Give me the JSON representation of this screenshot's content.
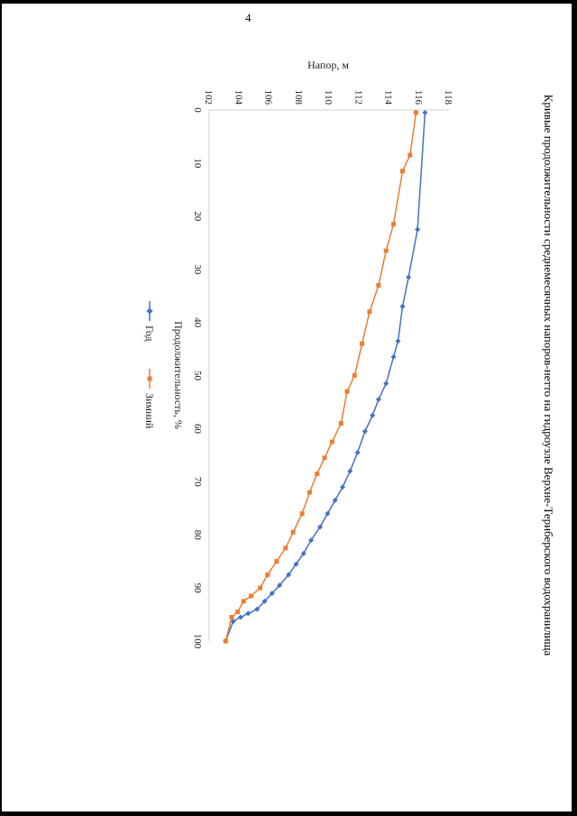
{
  "page": {
    "number": "4"
  },
  "chart_data": {
    "type": "line",
    "title": "Кривые продолжительности среднемесячных напоров-нетто на гидроузле Верхне-Териберского водохранилища",
    "xlabel": "Продолжительность, %",
    "ylabel": "Напор, м",
    "xlim": [
      0,
      100
    ],
    "ylim": [
      102,
      118
    ],
    "xticks": [
      "0",
      "10",
      "20",
      "30",
      "40",
      "50",
      "60",
      "70",
      "80",
      "90",
      "100"
    ],
    "yticks": [
      "102",
      "104",
      "106",
      "108",
      "110",
      "112",
      "114",
      "116",
      "118"
    ],
    "legend_position": "bottom",
    "series": [
      {
        "name": "Год",
        "color": "#4472C4",
        "marker": "diamond",
        "points": [
          [
            0.5,
            116.4
          ],
          [
            22.5,
            115.9
          ],
          [
            31.5,
            115.3
          ],
          [
            37,
            114.9
          ],
          [
            43.5,
            114.6
          ],
          [
            46.5,
            114.3
          ],
          [
            51.5,
            113.8
          ],
          [
            54.5,
            113.3
          ],
          [
            57.5,
            112.9
          ],
          [
            60.5,
            112.4
          ],
          [
            64.5,
            111.9
          ],
          [
            68,
            111.4
          ],
          [
            71,
            110.9
          ],
          [
            73.5,
            110.4
          ],
          [
            76,
            109.9
          ],
          [
            78.5,
            109.4
          ],
          [
            81,
            108.8
          ],
          [
            83.5,
            108.3
          ],
          [
            85.5,
            107.8
          ],
          [
            87.5,
            107.3
          ],
          [
            89.5,
            106.7
          ],
          [
            91,
            106.2
          ],
          [
            92.5,
            105.7
          ],
          [
            94,
            105.2
          ],
          [
            94.8,
            104.6
          ],
          [
            95.5,
            104.1
          ],
          [
            96.3,
            103.6
          ],
          [
            100,
            103.1
          ]
        ]
      },
      {
        "name": "Зимний",
        "color": "#ED7D31",
        "marker": "square",
        "points": [
          [
            0.5,
            115.8
          ],
          [
            8.5,
            115.4
          ],
          [
            11.5,
            114.9
          ],
          [
            21.5,
            114.3
          ],
          [
            26.5,
            113.8
          ],
          [
            33,
            113.3
          ],
          [
            38,
            112.7
          ],
          [
            44,
            112.2
          ],
          [
            50,
            111.7
          ],
          [
            53,
            111.2
          ],
          [
            59,
            110.8
          ],
          [
            62.5,
            110.2
          ],
          [
            65.5,
            109.7
          ],
          [
            68.5,
            109.2
          ],
          [
            72,
            108.7
          ],
          [
            76,
            108.2
          ],
          [
            79.5,
            107.6
          ],
          [
            82.5,
            107.1
          ],
          [
            85,
            106.5
          ],
          [
            87.5,
            105.9
          ],
          [
            90,
            105.4
          ],
          [
            91.5,
            104.8
          ],
          [
            92.5,
            104.3
          ],
          [
            94.5,
            103.9
          ],
          [
            95.5,
            103.5
          ],
          [
            100,
            103.1
          ]
        ]
      }
    ]
  }
}
